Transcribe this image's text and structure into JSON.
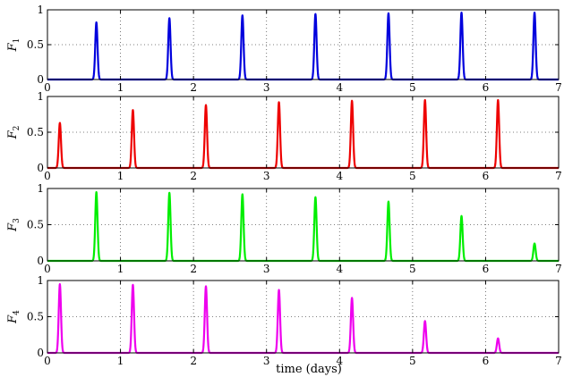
{
  "xlabel": "time (days)",
  "x_tick_labels": [
    "0",
    "1",
    "2",
    "3",
    "4",
    "5",
    "6",
    "7"
  ],
  "y_tick_labels": [
    "0",
    "0.5",
    "1"
  ],
  "chart_data": [
    {
      "type": "line",
      "ylabel": "F",
      "ylabel_sub": "1",
      "color": "#0000dd",
      "xlim": [
        0,
        7
      ],
      "ylim": [
        0,
        1
      ],
      "grid": true,
      "peaks_x": [
        0.67,
        1.67,
        2.67,
        3.67,
        4.67,
        5.67,
        6.67
      ],
      "peaks_y": [
        0.82,
        0.88,
        0.92,
        0.94,
        0.95,
        0.96,
        0.96
      ]
    },
    {
      "type": "line",
      "ylabel": "F",
      "ylabel_sub": "2",
      "color": "#ee0000",
      "xlim": [
        0,
        7
      ],
      "ylim": [
        0,
        1
      ],
      "grid": true,
      "peaks_x": [
        0.17,
        1.17,
        2.17,
        3.17,
        4.17,
        5.17,
        6.17
      ],
      "peaks_y": [
        0.63,
        0.81,
        0.88,
        0.92,
        0.94,
        0.95,
        0.95
      ]
    },
    {
      "type": "line",
      "ylabel": "F",
      "ylabel_sub": "3",
      "color": "#00ee00",
      "xlim": [
        0,
        7
      ],
      "ylim": [
        0,
        1
      ],
      "grid": true,
      "peaks_x": [
        0.67,
        1.67,
        2.67,
        3.67,
        4.67,
        5.67,
        6.67
      ],
      "peaks_y": [
        0.95,
        0.94,
        0.92,
        0.88,
        0.82,
        0.62,
        0.24
      ]
    },
    {
      "type": "line",
      "ylabel": "F",
      "ylabel_sub": "4",
      "color": "#ee00ee",
      "xlim": [
        0,
        7
      ],
      "ylim": [
        0,
        1
      ],
      "grid": true,
      "peaks_x": [
        0.17,
        1.17,
        2.17,
        3.17,
        4.17,
        5.17,
        6.17
      ],
      "peaks_y": [
        0.95,
        0.94,
        0.92,
        0.87,
        0.76,
        0.44,
        0.2
      ]
    }
  ]
}
